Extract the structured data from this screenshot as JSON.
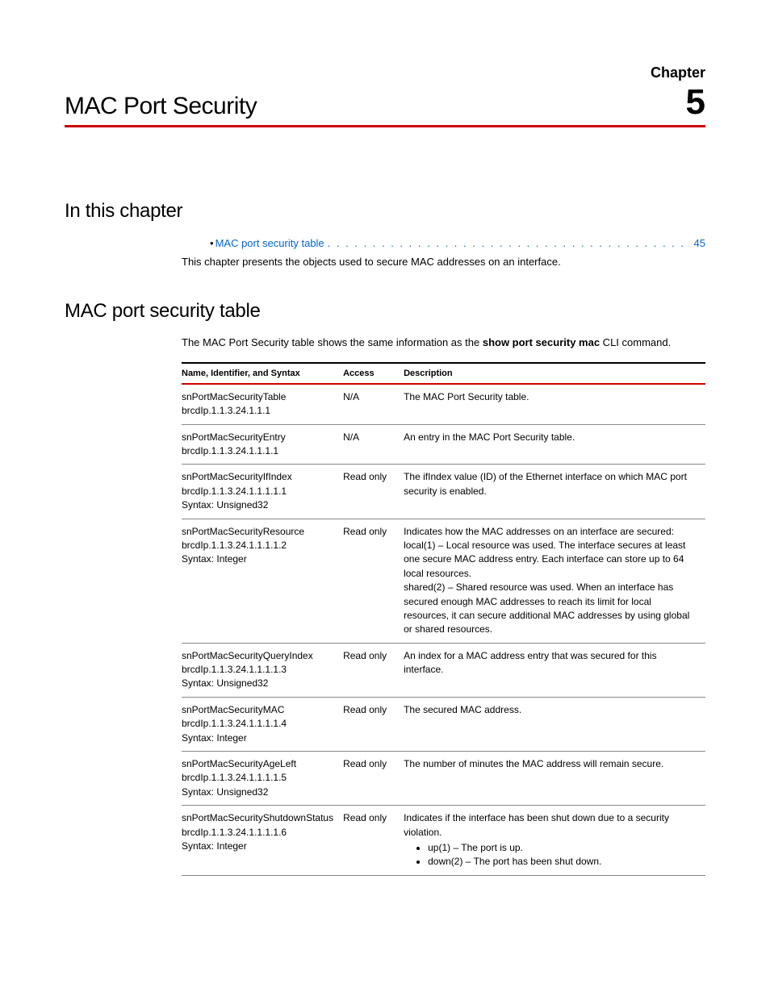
{
  "chapter": {
    "label": "Chapter",
    "number": "5",
    "title": "MAC Port Security"
  },
  "section1": {
    "heading": "In this chapter",
    "toc": {
      "link_text": "MAC port security table",
      "page": "45"
    },
    "intro": "This chapter presents the objects used to secure MAC addresses on an interface."
  },
  "section2": {
    "heading": "MAC port security table",
    "intro_pre": "The MAC Port Security table shows the same information as the ",
    "intro_bold": "show port security mac",
    "intro_post": " CLI command."
  },
  "table": {
    "headers": {
      "name": "Name, Identifier, and Syntax",
      "access": "Access",
      "description": "Description"
    },
    "rows": [
      {
        "name_lines": [
          "snPortMacSecurityTable",
          "brcdIp.1.1.3.24.1.1.1"
        ],
        "access": "N/A",
        "desc": [
          "The MAC Port Security table."
        ]
      },
      {
        "name_lines": [
          "snPortMacSecurityEntry",
          "brcdIp.1.1.3.24.1.1.1.1"
        ],
        "access": "N/A",
        "desc": [
          "An entry in the MAC Port Security table."
        ]
      },
      {
        "name_lines": [
          "snPortMacSecurityIfIndex",
          "brcdIp.1.1.3.24.1.1.1.1.1",
          "Syntax: Unsigned32"
        ],
        "access": "Read only",
        "desc": [
          "The ifIndex value (ID) of the Ethernet interface on which MAC port security is enabled."
        ]
      },
      {
        "name_lines": [
          "snPortMacSecurityResource",
          "brcdIp.1.1.3.24.1.1.1.1.2",
          "Syntax: Integer"
        ],
        "access": "Read only",
        "desc": [
          "Indicates how the MAC addresses on an interface are secured:",
          "local(1) – Local resource was used. The interface secures at least one secure MAC address entry. Each interface can store up to 64 local resources.",
          "shared(2) – Shared resource was used. When an interface has secured enough MAC addresses to reach its limit for local resources, it can secure additional MAC addresses by using global or shared resources."
        ]
      },
      {
        "name_lines": [
          "snPortMacSecurityQueryIndex",
          "brcdIp.1.1.3.24.1.1.1.1.3",
          "Syntax: Unsigned32"
        ],
        "access": "Read only",
        "desc": [
          "An index for a MAC address entry that was secured for this interface."
        ]
      },
      {
        "name_lines": [
          "snPortMacSecurityMAC",
          "brcdIp.1.1.3.24.1.1.1.1.4",
          "Syntax: Integer"
        ],
        "access": "Read only",
        "desc": [
          "The secured MAC address."
        ]
      },
      {
        "name_lines": [
          "snPortMacSecurityAgeLeft",
          "brcdIp.1.1.3.24.1.1.1.1.5",
          "Syntax: Unsigned32"
        ],
        "access": "Read only",
        "desc": [
          "The number of minutes the MAC address will remain secure."
        ]
      },
      {
        "name_lines": [
          "snPortMacSecurityShutdownStatus",
          "brcdIp.1.1.3.24.1.1.1.1.6",
          "Syntax: Integer"
        ],
        "access": "Read only",
        "desc": [
          "Indicates if the interface has been shut down due to a security violation."
        ],
        "bullets": [
          "up(1) – The port is up.",
          "down(2) – The port has been shut down."
        ]
      }
    ]
  }
}
